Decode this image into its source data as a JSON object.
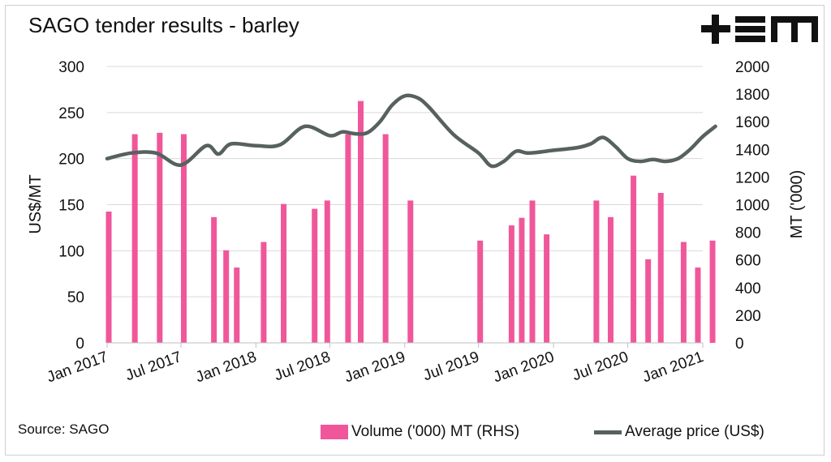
{
  "title": "SAGO tender results - barley",
  "source": "Source: SAGO",
  "logo": {
    "text": "+ΞM",
    "icon": "tem-logo"
  },
  "colors": {
    "bars": "#f0579a",
    "line": "#57615f",
    "text": "#111111",
    "grid": "#d9d9d9"
  },
  "chart_data": {
    "type": "bar+line",
    "title": "SAGO tender results - barley",
    "x_tick_labels": [
      "Jan 2017",
      "Jul 2017",
      "Jan 2018",
      "Jul 2018",
      "Jan 2019",
      "Jul 2019",
      "Jan 2020",
      "Jul 2020",
      "Jan 2021"
    ],
    "x_tick_dates": [
      "2017-01",
      "2017-07",
      "2018-01",
      "2018-07",
      "2019-01",
      "2019-07",
      "2020-01",
      "2020-07",
      "2021-01"
    ],
    "ylabel_left": "US$/MT",
    "ylabel_right": "MT ('000)",
    "ylim_left": [
      0,
      300
    ],
    "ylim_right": [
      0,
      2000
    ],
    "yticks_left": [
      0,
      50,
      100,
      150,
      200,
      250,
      300
    ],
    "yticks_right": [
      0,
      200,
      400,
      600,
      800,
      1000,
      1200,
      1400,
      1600,
      1800,
      2000
    ],
    "grid": true,
    "legend_position": "bottom-right",
    "series": [
      {
        "name": "Volume ('000) MT (RHS)",
        "kind": "bar",
        "axis": "right",
        "x": [
          "2017-01-05",
          "2017-03-10",
          "2017-05-10",
          "2017-07-08",
          "2017-09-20",
          "2017-10-20",
          "2017-11-15",
          "2018-01-20",
          "2018-03-10",
          "2018-05-25",
          "2018-06-25",
          "2018-08-15",
          "2018-09-15",
          "2018-11-15",
          "2019-01-15",
          "2019-07-05",
          "2019-09-20",
          "2019-10-15",
          "2019-11-10",
          "2019-12-15",
          "2020-04-15",
          "2020-05-20",
          "2020-07-15",
          "2020-08-20",
          "2020-09-20",
          "2020-11-15",
          "2020-12-20",
          "2021-01-25"
        ],
        "values": [
          950,
          1510,
          1520,
          1510,
          910,
          670,
          545,
          730,
          1005,
          970,
          1030,
          1510,
          1750,
          1510,
          1030,
          740,
          850,
          905,
          1030,
          785,
          1030,
          910,
          1210,
          605,
          1085,
          730,
          545,
          740
        ]
      },
      {
        "name": "Average price (US$)",
        "kind": "line",
        "axis": "left",
        "x": [
          "2017-01-01",
          "2017-03-01",
          "2017-05-01",
          "2017-07-01",
          "2017-09-01",
          "2017-10-01",
          "2017-11-01",
          "2018-01-01",
          "2018-03-01",
          "2018-05-01",
          "2018-07-01",
          "2018-08-01",
          "2018-09-01",
          "2018-10-01",
          "2018-11-01",
          "2018-12-01",
          "2019-01-01",
          "2019-02-01",
          "2019-03-01",
          "2019-05-01",
          "2019-07-01",
          "2019-08-01",
          "2019-09-01",
          "2019-10-01",
          "2019-11-01",
          "2020-01-01",
          "2020-03-01",
          "2020-04-01",
          "2020-05-01",
          "2020-06-01",
          "2020-07-01",
          "2020-08-01",
          "2020-09-01",
          "2020-10-01",
          "2020-11-01",
          "2020-12-01",
          "2021-01-01",
          "2021-02-01"
        ],
        "values": [
          200,
          206,
          206,
          193,
          214,
          205,
          216,
          214,
          215,
          235,
          225,
          229,
          227,
          228,
          240,
          258,
          268,
          266,
          256,
          226,
          206,
          192,
          197,
          208,
          206,
          209,
          212,
          216,
          223,
          213,
          200,
          197,
          199,
          197,
          200,
          210,
          224,
          235
        ]
      }
    ]
  }
}
